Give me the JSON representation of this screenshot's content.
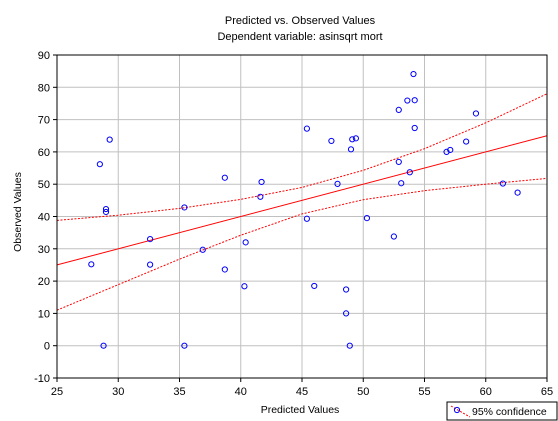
{
  "chart_data": {
    "type": "scatter",
    "title": "Predicted vs. Observed Values",
    "subtitle": "Dependent variable: asinsqrt mort",
    "xlabel": "Predicted Values",
    "ylabel": "Observed Values",
    "xlim": [
      25,
      65
    ],
    "ylim": [
      -10,
      90
    ],
    "xticks": [
      25,
      30,
      35,
      40,
      45,
      50,
      55,
      60,
      65
    ],
    "yticks": [
      -10,
      0,
      10,
      20,
      30,
      40,
      50,
      60,
      70,
      80,
      90
    ],
    "grid": true,
    "legend": {
      "label": "95% confidence",
      "placement": "bottom-right"
    },
    "points": [
      {
        "x": 27.8,
        "y": 25.2
      },
      {
        "x": 28.5,
        "y": 56.2
      },
      {
        "x": 28.8,
        "y": 0.0
      },
      {
        "x": 29.0,
        "y": 42.3
      },
      {
        "x": 29.0,
        "y": 41.4
      },
      {
        "x": 29.3,
        "y": 63.8
      },
      {
        "x": 32.6,
        "y": 33.0
      },
      {
        "x": 32.6,
        "y": 25.1
      },
      {
        "x": 35.4,
        "y": 42.8
      },
      {
        "x": 35.4,
        "y": 0.0
      },
      {
        "x": 36.9,
        "y": 29.7
      },
      {
        "x": 38.7,
        "y": 52.0
      },
      {
        "x": 38.7,
        "y": 23.6
      },
      {
        "x": 40.3,
        "y": 18.4
      },
      {
        "x": 40.4,
        "y": 32.0
      },
      {
        "x": 41.7,
        "y": 50.7
      },
      {
        "x": 41.6,
        "y": 46.1
      },
      {
        "x": 45.4,
        "y": 67.2
      },
      {
        "x": 45.4,
        "y": 39.3
      },
      {
        "x": 46.0,
        "y": 18.5
      },
      {
        "x": 47.4,
        "y": 63.4
      },
      {
        "x": 47.9,
        "y": 50.1
      },
      {
        "x": 48.6,
        "y": 17.4
      },
      {
        "x": 48.6,
        "y": 10.0
      },
      {
        "x": 48.9,
        "y": 0.0
      },
      {
        "x": 49.0,
        "y": 60.8
      },
      {
        "x": 49.1,
        "y": 63.9
      },
      {
        "x": 49.4,
        "y": 64.2
      },
      {
        "x": 50.3,
        "y": 39.5
      },
      {
        "x": 52.5,
        "y": 33.8
      },
      {
        "x": 52.9,
        "y": 73.0
      },
      {
        "x": 52.9,
        "y": 56.9
      },
      {
        "x": 53.1,
        "y": 50.3
      },
      {
        "x": 53.6,
        "y": 75.9
      },
      {
        "x": 53.8,
        "y": 53.7
      },
      {
        "x": 54.1,
        "y": 84.1
      },
      {
        "x": 54.2,
        "y": 76.0
      },
      {
        "x": 54.2,
        "y": 67.4
      },
      {
        "x": 56.8,
        "y": 60.0
      },
      {
        "x": 57.1,
        "y": 60.6
      },
      {
        "x": 58.4,
        "y": 63.2
      },
      {
        "x": 59.2,
        "y": 71.9
      },
      {
        "x": 61.4,
        "y": 50.2
      },
      {
        "x": 62.6,
        "y": 47.4
      }
    ],
    "regression_line": {
      "x": [
        25,
        65
      ],
      "y": [
        25.0,
        65.0
      ]
    },
    "confidence_upper": {
      "x": [
        25,
        30,
        35,
        40,
        45,
        50,
        55,
        60,
        65
      ],
      "y": [
        38.8,
        40.4,
        42.5,
        45.3,
        49.0,
        54.3,
        61.0,
        69.0,
        78.0
      ]
    },
    "confidence_lower": {
      "x": [
        25,
        30,
        35,
        40,
        45,
        50,
        55,
        60,
        65
      ],
      "y": [
        11.0,
        18.9,
        26.8,
        34.2,
        40.8,
        45.2,
        48.0,
        50.0,
        51.8
      ]
    },
    "colors": {
      "point": "#0000ff",
      "regression": "#ff0000",
      "confidence": "#ff0000",
      "grid": "#c0c0c0",
      "axis": "#000000"
    }
  }
}
